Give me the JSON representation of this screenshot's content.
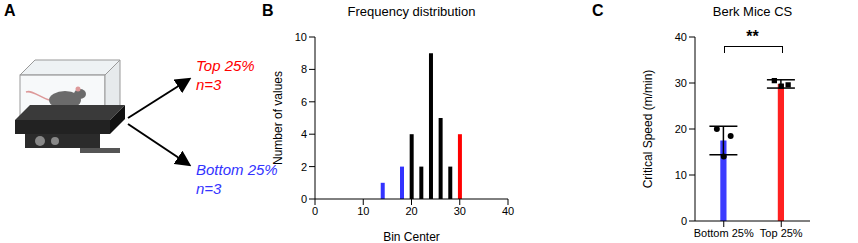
{
  "panel_labels": [
    "A",
    "B",
    "C"
  ],
  "diagram": {
    "groups": [
      {
        "label": "Top 25%",
        "n": "n=3",
        "color": "#ff0000"
      },
      {
        "label": "Bottom 25%",
        "n": "n=3",
        "color": "#3333ff"
      }
    ]
  },
  "chart_data": [
    {
      "type": "histogram",
      "title": "Frequency distribution",
      "x_label": "Bin Center",
      "y_label": "Number of values",
      "bins": [
        13,
        15,
        17,
        19,
        21,
        23,
        25,
        27,
        29,
        31
      ],
      "values": [
        1,
        0,
        2,
        4,
        2,
        9,
        5,
        2,
        4
      ],
      "colors": [
        "#3333ff",
        "#3333ff",
        "#3333ff",
        "#000000",
        "#000000",
        "#000000",
        "#000000",
        "#000000",
        "#ff0000"
      ],
      "xlim": [
        0,
        40
      ],
      "xticks": [
        0,
        10,
        20,
        30,
        40
      ],
      "ylim": [
        0,
        10
      ],
      "yticks": [
        0,
        2,
        4,
        6,
        8,
        10
      ]
    },
    {
      "type": "bar",
      "title": "Berk Mice CS",
      "y_label": "Critical Speed (m/min)",
      "categories": [
        "Bottom 25%",
        "Top 25%"
      ],
      "values": [
        17.5,
        29.8
      ],
      "errors": [
        3.1,
        0.9
      ],
      "colors": [
        "#3b3bff",
        "#ff2020"
      ],
      "points": [
        {
          "values": [
            20,
            18.5,
            14
          ],
          "marker": "circle"
        },
        {
          "values": [
            30.5,
            29.3,
            29.6
          ],
          "marker": "square"
        }
      ],
      "ylim": [
        0,
        40
      ],
      "yticks": [
        0,
        10,
        20,
        30,
        40
      ],
      "annotation": "**"
    }
  ]
}
